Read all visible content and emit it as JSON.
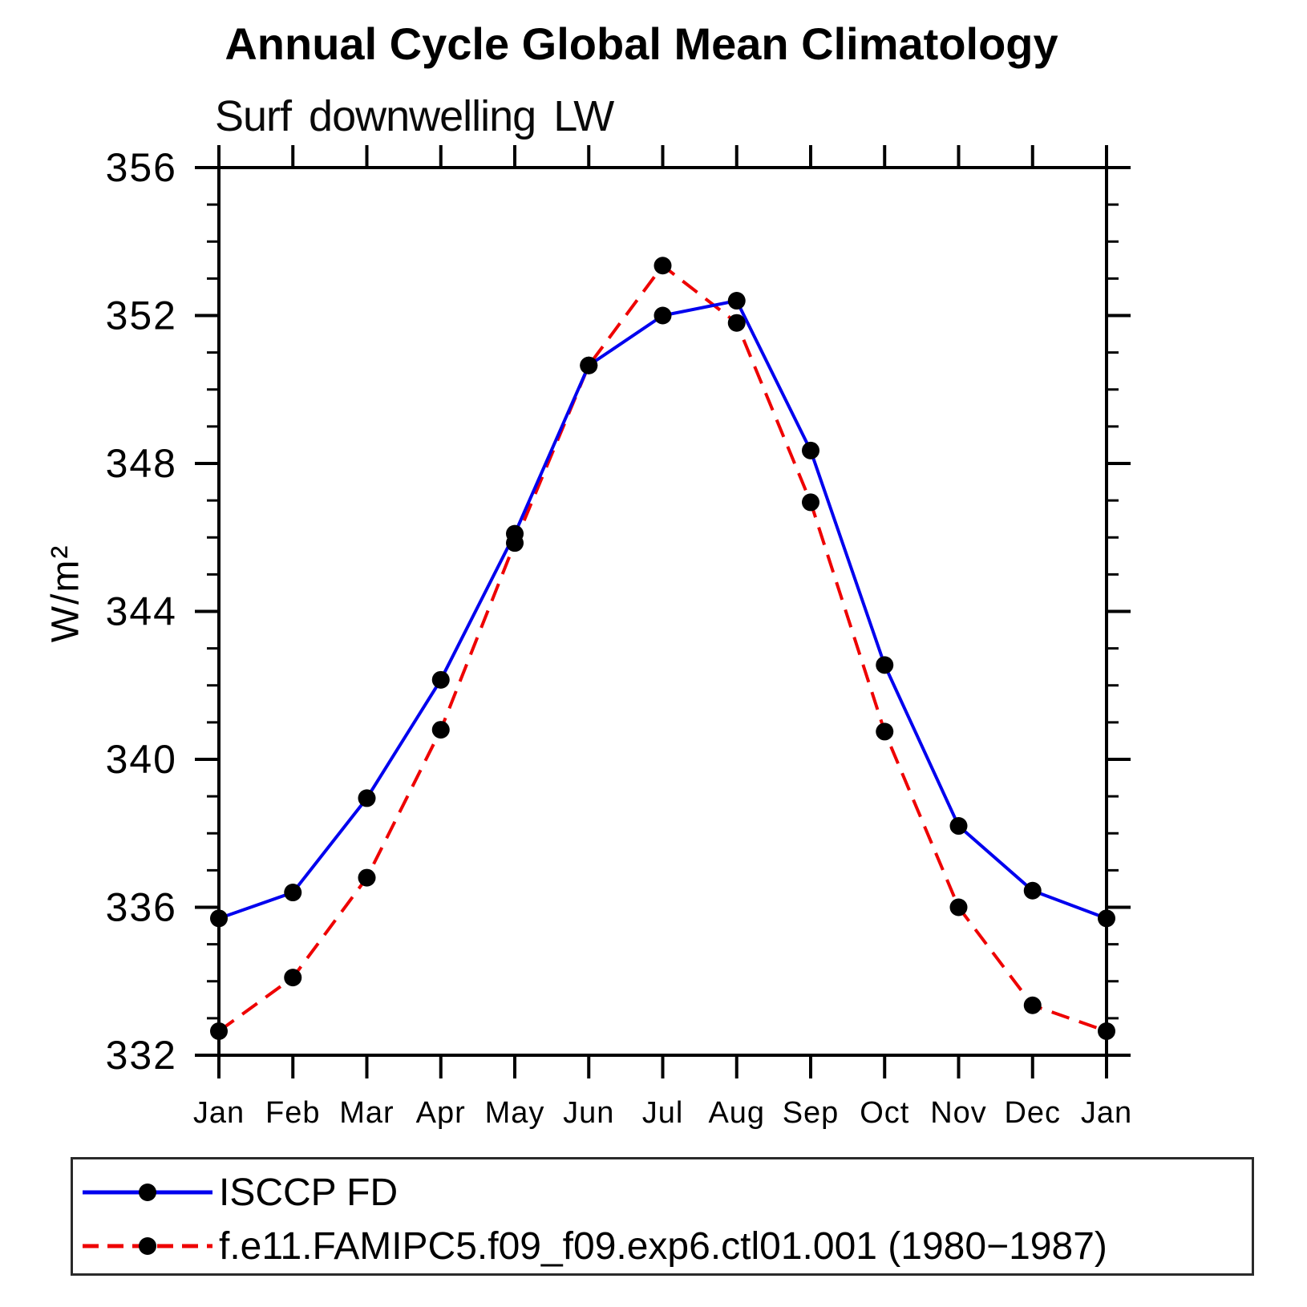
{
  "header": {
    "title": "Annual Cycle Global Mean Climatology",
    "subtitle": "Surf downwelling LW"
  },
  "chart_data": {
    "type": "line",
    "title": "Annual Cycle Global Mean Climatology",
    "subtitle": "Surf downwelling LW",
    "x": [
      "Jan",
      "Feb",
      "Mar",
      "Apr",
      "May",
      "Jun",
      "Jul",
      "Aug",
      "Sep",
      "Oct",
      "Nov",
      "Dec",
      "Jan"
    ],
    "xlabel": "",
    "ylabel": "W/m²",
    "ylim": [
      332,
      356
    ],
    "yticks_major": [
      332,
      336,
      340,
      344,
      348,
      352,
      356
    ],
    "ytick_minor_step": 1,
    "grid": false,
    "legend_position": "bottom-left-box",
    "series": [
      {
        "name": "ISCCP FD",
        "color": "#0000ee",
        "style": "solid",
        "marker": "circle",
        "marker_color": "#000000",
        "values": [
          335.7,
          336.4,
          338.95,
          342.15,
          346.1,
          350.65,
          352.0,
          352.4,
          348.35,
          342.55,
          338.2,
          336.45,
          335.7
        ]
      },
      {
        "name": "f.e11.FAMIPC5.f09_f09.exp6.ctl01.001 (1980−1987)",
        "color": "#ee0000",
        "style": "dashed",
        "marker": "circle",
        "marker_color": "#000000",
        "values": [
          332.65,
          334.1,
          336.8,
          340.8,
          345.85,
          350.65,
          353.35,
          351.8,
          346.95,
          340.75,
          336.0,
          333.35,
          332.65
        ]
      }
    ]
  }
}
